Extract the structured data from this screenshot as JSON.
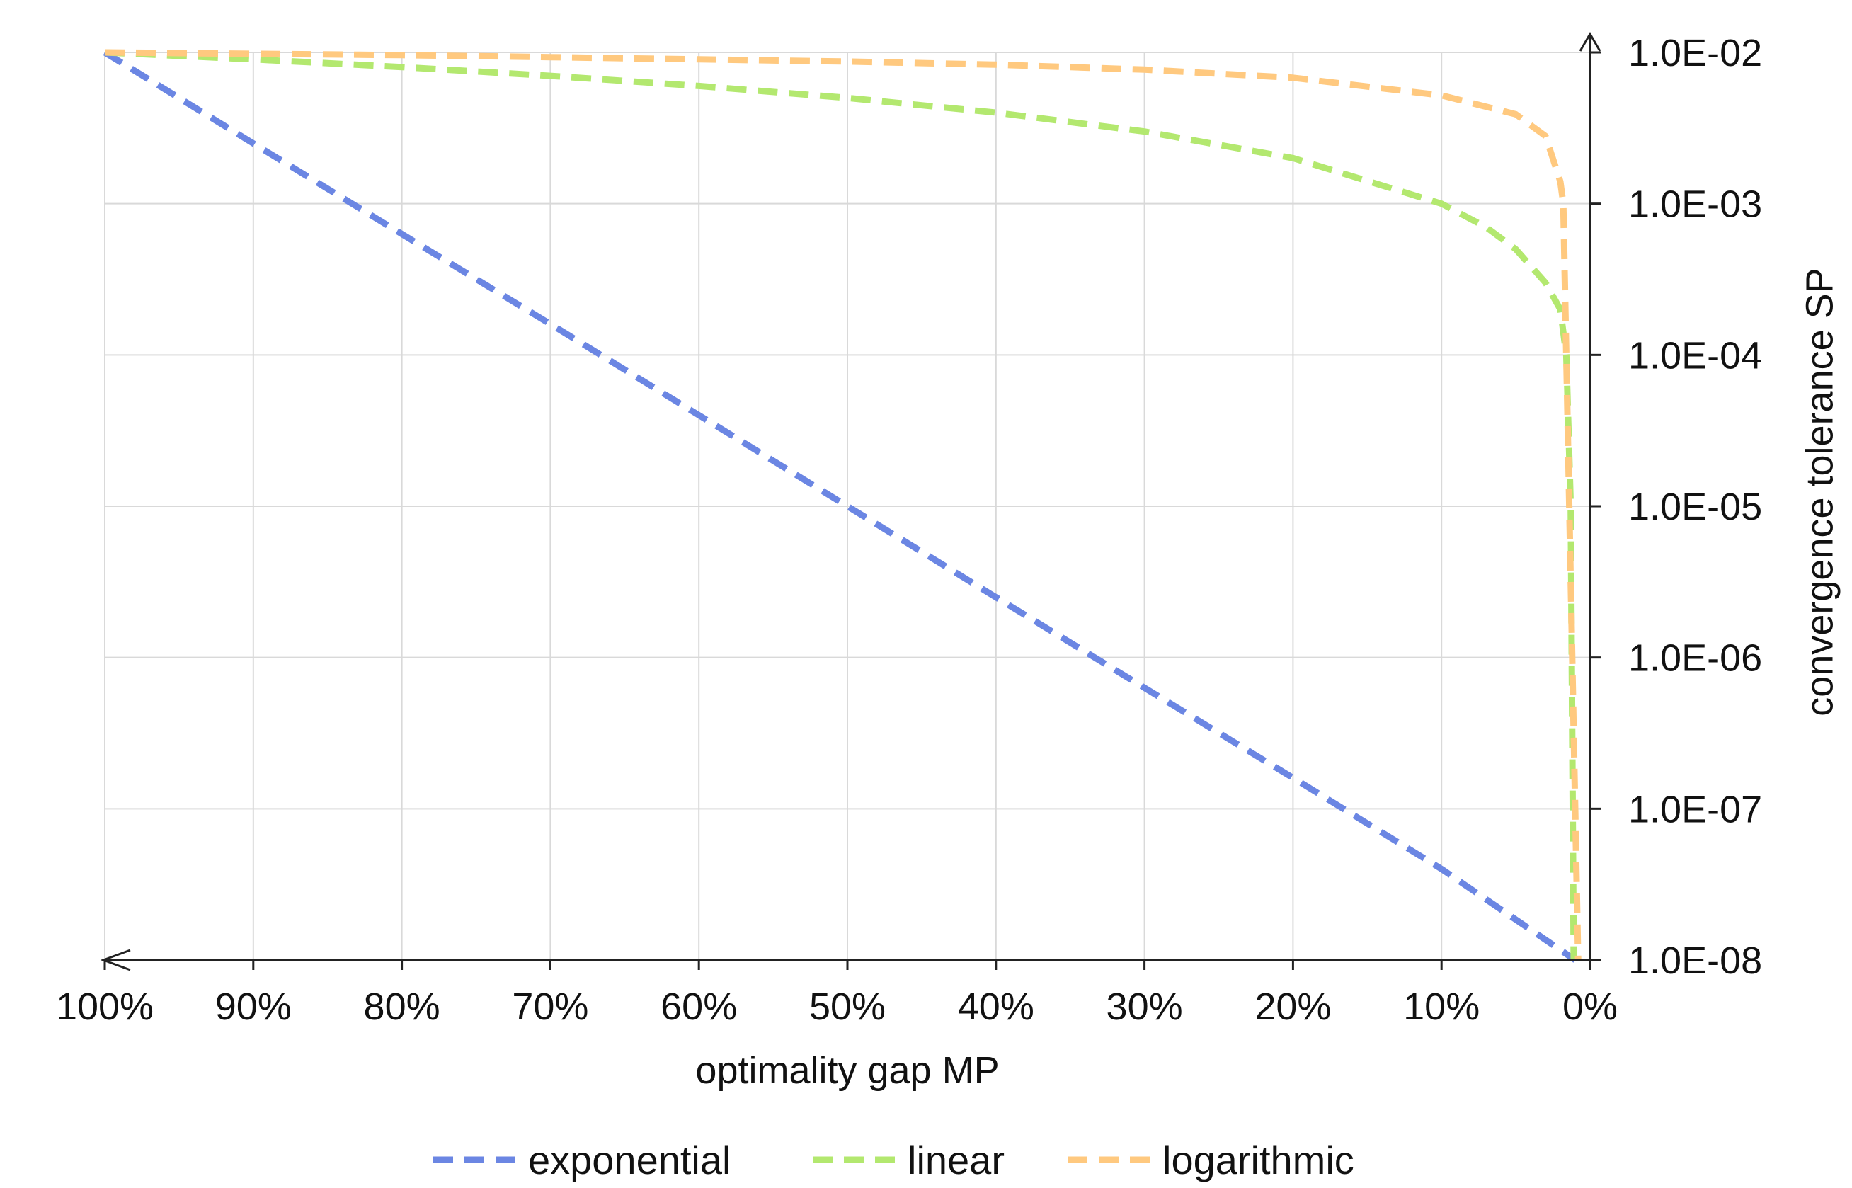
{
  "chart_data": {
    "type": "line",
    "title": "",
    "xlabel": "optimality gap MP",
    "ylabel": "convergence tolerance SP",
    "x_ticks": [
      "100%",
      "90%",
      "80%",
      "70%",
      "60%",
      "50%",
      "40%",
      "30%",
      "20%",
      "10%",
      "0%"
    ],
    "x_tick_values": [
      100,
      90,
      80,
      70,
      60,
      50,
      40,
      30,
      20,
      10,
      0
    ],
    "xlim": [
      100,
      0
    ],
    "x_reversed": true,
    "y_ticks": [
      "1.0E-02",
      "1.0E-03",
      "1.0E-04",
      "1.0E-05",
      "1.0E-06",
      "1.0E-07",
      "1.0E-08"
    ],
    "y_tick_values": [
      0.01,
      0.001,
      0.0001,
      1e-05,
      1e-06,
      1e-07,
      1e-08
    ],
    "ylim": [
      1e-08,
      0.01
    ],
    "y_scale": "log",
    "y_axis_side": "right",
    "grid": true,
    "legend_position": "bottom",
    "colors": {
      "exponential": "#6b86e3",
      "linear": "#b3e86f",
      "logarithmic": "#ffc97f",
      "grid": "#d9d9d9",
      "axis": "#222222"
    },
    "series": [
      {
        "name": "exponential",
        "style": "dashed",
        "x": [
          100,
          90,
          80,
          70,
          60,
          50,
          40,
          30,
          20,
          10,
          1
        ],
        "y": [
          0.01,
          0.0025,
          0.00063,
          0.00016,
          4e-05,
          1e-05,
          2.5e-06,
          6.3e-07,
          1.6e-07,
          4e-08,
          1e-08
        ]
      },
      {
        "name": "linear",
        "style": "dashed",
        "x": [
          100,
          90,
          80,
          70,
          60,
          50,
          40,
          30,
          20,
          10,
          7,
          5,
          3,
          2,
          1.6,
          1.3,
          1.1
        ],
        "y": [
          0.01,
          0.009,
          0.008,
          0.007,
          0.006,
          0.005,
          0.004,
          0.003,
          0.002,
          0.001,
          0.0007,
          0.0005,
          0.0003,
          0.0002,
          0.0001,
          1e-05,
          1e-08
        ]
      },
      {
        "name": "logarithmic",
        "style": "dashed",
        "x": [
          100,
          90,
          80,
          70,
          60,
          50,
          40,
          30,
          20,
          10,
          5,
          3,
          2,
          1.8,
          1.6,
          1.4,
          1.2,
          1.0,
          0.8
        ],
        "y": [
          0.01,
          0.0098,
          0.0096,
          0.0093,
          0.009,
          0.0087,
          0.0083,
          0.0077,
          0.0068,
          0.0052,
          0.0039,
          0.0028,
          0.0014,
          0.001,
          0.0001,
          1e-05,
          1e-06,
          1e-07,
          1e-08
        ]
      }
    ]
  }
}
